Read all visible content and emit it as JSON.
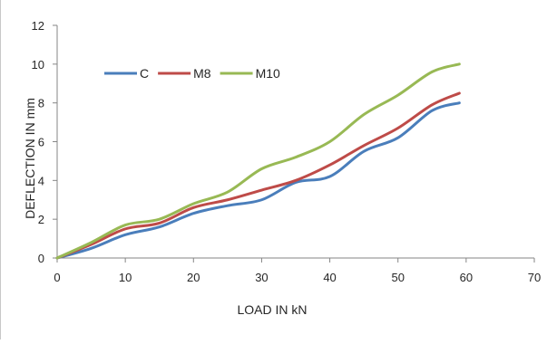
{
  "chart_data": {
    "type": "line",
    "title": "",
    "xlabel": "LOAD IN kN",
    "ylabel": "DEFLECTION IN mm",
    "xlim": [
      0,
      70
    ],
    "ylim": [
      0,
      12
    ],
    "xticks": [
      0,
      10,
      20,
      30,
      40,
      50,
      60,
      70
    ],
    "yticks": [
      0,
      2,
      4,
      6,
      8,
      10,
      12
    ],
    "grid": false,
    "legend": "top-left, inside plot, horizontal",
    "series": [
      {
        "name": "C",
        "color": "#4a7ebb",
        "x": [
          0,
          5,
          10,
          15,
          20,
          25,
          30,
          35,
          40,
          45,
          50,
          55,
          59
        ],
        "y": [
          0,
          0.5,
          1.2,
          1.6,
          2.3,
          2.7,
          3.0,
          3.9,
          4.2,
          5.5,
          6.2,
          7.6,
          8.0
        ]
      },
      {
        "name": "M8",
        "color": "#be4b48",
        "x": [
          0,
          5,
          10,
          15,
          20,
          25,
          30,
          35,
          40,
          45,
          50,
          55,
          59
        ],
        "y": [
          0,
          0.7,
          1.5,
          1.8,
          2.6,
          3.0,
          3.5,
          4.0,
          4.8,
          5.8,
          6.7,
          7.9,
          8.5
        ]
      },
      {
        "name": "M10",
        "color": "#98b954",
        "x": [
          0,
          5,
          10,
          15,
          20,
          25,
          30,
          35,
          40,
          45,
          50,
          55,
          59
        ],
        "y": [
          0,
          0.8,
          1.7,
          2.0,
          2.8,
          3.4,
          4.6,
          5.2,
          6.0,
          7.4,
          8.4,
          9.6,
          10.0
        ]
      }
    ]
  }
}
